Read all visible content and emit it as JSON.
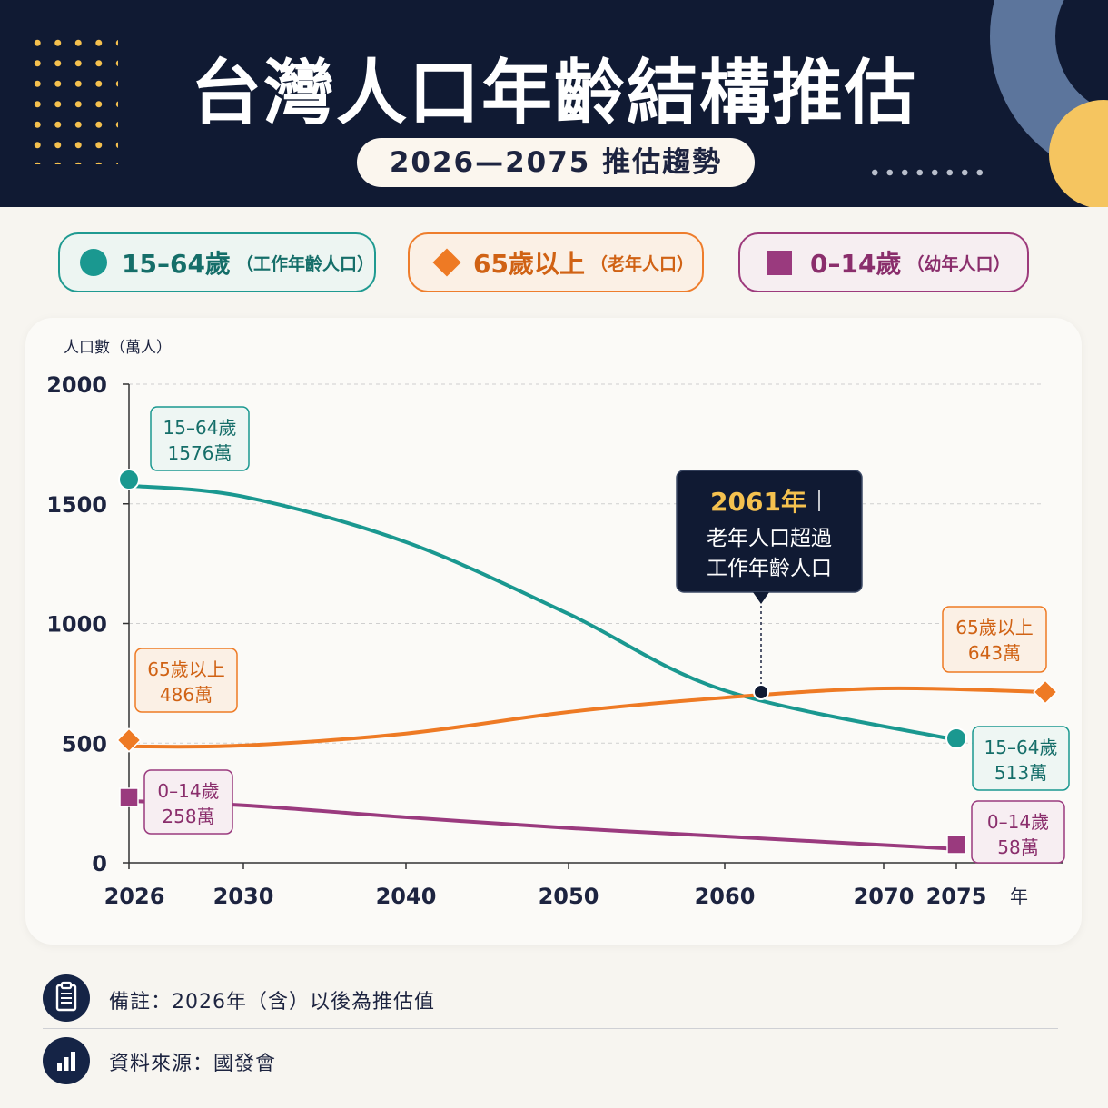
{
  "header": {
    "title": "台灣人口年齡結構推估",
    "subtitle": "2026—2075 推估趨勢"
  },
  "legend": [
    {
      "main": "15–64歲",
      "sub": "（工作年齡人口）",
      "color": "#1a9890",
      "marker": "circle"
    },
    {
      "main": "65歲以上",
      "sub": "（老年人口）",
      "color": "#ee7a24",
      "marker": "diamond"
    },
    {
      "main": "0–14歲",
      "sub": "（幼年人口）",
      "color": "#9a3a7e",
      "marker": "square"
    }
  ],
  "chart_data": {
    "type": "line",
    "ylabel": "人口數（萬人）",
    "xlabel": "年",
    "ylim": [
      0,
      2000
    ],
    "y_ticks": [
      0,
      500,
      1000,
      1500,
      2000
    ],
    "x_ticks": [
      2026,
      2030,
      2040,
      2050,
      2060,
      2070,
      2075
    ],
    "grid": true,
    "series": [
      {
        "name": "15–64歲",
        "color": "#1a9890",
        "marker": "circle",
        "points": [
          [
            2026,
            1576
          ],
          [
            2030,
            1530
          ],
          [
            2040,
            1340
          ],
          [
            2050,
            1040
          ],
          [
            2060,
            720
          ],
          [
            2075,
            513
          ]
        ]
      },
      {
        "name": "65歲以上",
        "color": "#ee7a24",
        "marker": "diamond",
        "points": [
          [
            2026,
            486
          ],
          [
            2030,
            490
          ],
          [
            2040,
            540
          ],
          [
            2050,
            630
          ],
          [
            2060,
            690
          ],
          [
            2070,
            700
          ],
          [
            2075,
            643
          ]
        ]
      },
      {
        "name": "0–14歲",
        "color": "#9a3a7e",
        "marker": "square",
        "points": [
          [
            2026,
            258
          ],
          [
            2030,
            240
          ],
          [
            2040,
            190
          ],
          [
            2050,
            145
          ],
          [
            2060,
            110
          ],
          [
            2075,
            58
          ]
        ]
      }
    ],
    "data_labels": [
      {
        "series": "15–64歲",
        "text1": "15–64歲",
        "text2": "1576萬"
      },
      {
        "series": "15–64歲",
        "text1": "15–64歲",
        "text2": "513萬"
      },
      {
        "series": "65歲以上",
        "text1": "65歲以上",
        "text2": "486萬"
      },
      {
        "series": "65歲以上",
        "text1": "65歲以上",
        "text2": "643萬"
      },
      {
        "series": "0–14歲",
        "text1": "0–14歲",
        "text2": "258萬"
      },
      {
        "series": "0–14歲",
        "text1": "0–14歲",
        "text2": "58萬"
      }
    ],
    "annotation": {
      "year_text": "2061年",
      "line1": "老年人口超過",
      "line2": "工作年齡人口"
    }
  },
  "footer": {
    "note": "備註：2026年（含）以後為推估值",
    "source": "資料來源：國發會"
  }
}
